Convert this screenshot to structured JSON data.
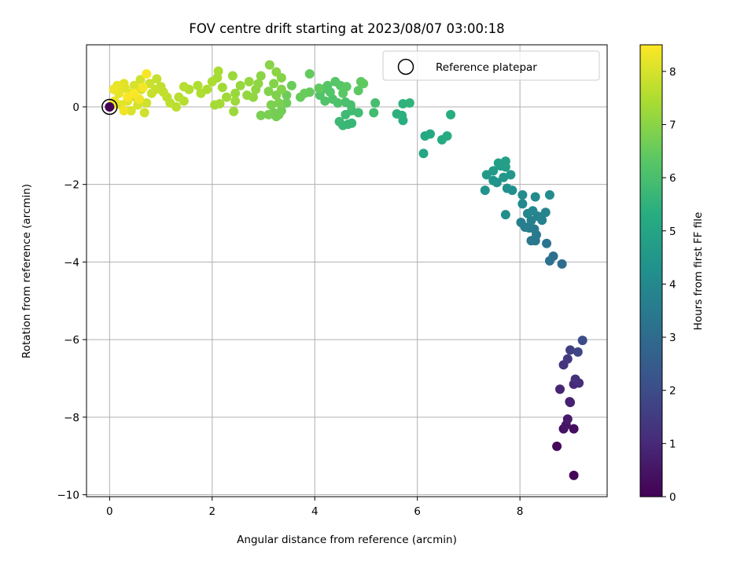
{
  "chart_data": {
    "type": "scatter",
    "title": "FOV centre drift starting at 2023/08/07 03:00:18",
    "xlabel": "Angular distance from reference (arcmin)",
    "ylabel": "Rotation from reference (arcmin)",
    "xlim": [
      -0.45,
      9.7
    ],
    "ylim": [
      -10.05,
      1.6
    ],
    "x_ticks": [
      0,
      2,
      4,
      6,
      8
    ],
    "y_ticks": [
      0,
      -2,
      -4,
      -6,
      -8,
      -10
    ],
    "x_tick_labels": [
      "0",
      "2",
      "4",
      "6",
      "8"
    ],
    "y_tick_labels": [
      "0",
      "−2",
      "−4",
      "−6",
      "−8",
      "−10"
    ],
    "grid": true,
    "legend": {
      "placement": "top-right",
      "entries": [
        {
          "label": "Reference platepar",
          "marker": "open-circle"
        }
      ]
    },
    "reference_point": {
      "x": 0,
      "y": 0
    },
    "colorbar": {
      "label": "Hours from first FF file",
      "colormap": "viridis",
      "range": [
        0,
        8.5
      ],
      "ticks": [
        0,
        1,
        2,
        3,
        4,
        5,
        6,
        7,
        8
      ],
      "tick_labels": [
        "0",
        "1",
        "2",
        "3",
        "4",
        "5",
        "6",
        "7",
        "8"
      ]
    },
    "points": [
      {
        "x": 9.05,
        "y": -9.5,
        "t": 0.1
      },
      {
        "x": 8.72,
        "y": -8.75,
        "t": 0.2
      },
      {
        "x": 9.05,
        "y": -8.3,
        "t": 0.3
      },
      {
        "x": 8.85,
        "y": -8.3,
        "t": 0.4
      },
      {
        "x": 8.9,
        "y": -8.2,
        "t": 0.5
      },
      {
        "x": 8.93,
        "y": -8.05,
        "t": 0.6
      },
      {
        "x": 8.97,
        "y": -7.6,
        "t": 0.75
      },
      {
        "x": 8.98,
        "y": -7.62,
        "t": 0.8
      },
      {
        "x": 8.78,
        "y": -7.28,
        "t": 0.9
      },
      {
        "x": 9.05,
        "y": -7.15,
        "t": 1.0
      },
      {
        "x": 9.15,
        "y": -7.12,
        "t": 1.1
      },
      {
        "x": 9.08,
        "y": -7.02,
        "t": 1.2
      },
      {
        "x": 8.85,
        "y": -6.65,
        "t": 1.3
      },
      {
        "x": 8.93,
        "y": -6.5,
        "t": 1.45
      },
      {
        "x": 8.98,
        "y": -6.27,
        "t": 1.6
      },
      {
        "x": 9.13,
        "y": -6.32,
        "t": 1.8
      },
      {
        "x": 9.22,
        "y": -6.02,
        "t": 2.0
      },
      {
        "x": 8.82,
        "y": -4.05,
        "t": 3.1
      },
      {
        "x": 8.65,
        "y": -3.85,
        "t": 3.15
      },
      {
        "x": 8.58,
        "y": -3.97,
        "t": 3.2
      },
      {
        "x": 8.52,
        "y": -3.52,
        "t": 3.3
      },
      {
        "x": 8.3,
        "y": -3.45,
        "t": 3.35
      },
      {
        "x": 8.22,
        "y": -3.45,
        "t": 3.4
      },
      {
        "x": 8.32,
        "y": -3.3,
        "t": 3.45
      },
      {
        "x": 8.28,
        "y": -3.15,
        "t": 3.5
      },
      {
        "x": 8.18,
        "y": -3.12,
        "t": 3.55
      },
      {
        "x": 8.1,
        "y": -3.1,
        "t": 3.6
      },
      {
        "x": 8.02,
        "y": -2.98,
        "t": 3.65
      },
      {
        "x": 8.22,
        "y": -2.93,
        "t": 3.7
      },
      {
        "x": 8.43,
        "y": -2.92,
        "t": 3.75
      },
      {
        "x": 8.35,
        "y": -2.82,
        "t": 3.8
      },
      {
        "x": 8.5,
        "y": -2.72,
        "t": 3.85
      },
      {
        "x": 8.15,
        "y": -2.75,
        "t": 3.9
      },
      {
        "x": 8.25,
        "y": -2.68,
        "t": 3.95
      },
      {
        "x": 8.05,
        "y": -2.5,
        "t": 4.0
      },
      {
        "x": 8.3,
        "y": -2.32,
        "t": 4.05
      },
      {
        "x": 8.58,
        "y": -2.27,
        "t": 4.1
      },
      {
        "x": 8.05,
        "y": -2.27,
        "t": 4.15
      },
      {
        "x": 7.72,
        "y": -2.78,
        "t": 4.2
      },
      {
        "x": 7.85,
        "y": -2.15,
        "t": 4.25
      },
      {
        "x": 7.75,
        "y": -2.1,
        "t": 4.3
      },
      {
        "x": 7.32,
        "y": -2.15,
        "t": 4.35
      },
      {
        "x": 7.55,
        "y": -1.95,
        "t": 4.4
      },
      {
        "x": 7.48,
        "y": -1.9,
        "t": 4.45
      },
      {
        "x": 7.68,
        "y": -1.82,
        "t": 4.5
      },
      {
        "x": 7.82,
        "y": -1.75,
        "t": 4.55
      },
      {
        "x": 7.35,
        "y": -1.75,
        "t": 4.6
      },
      {
        "x": 7.48,
        "y": -1.65,
        "t": 4.65
      },
      {
        "x": 7.62,
        "y": -1.52,
        "t": 4.7
      },
      {
        "x": 7.72,
        "y": -1.55,
        "t": 4.75
      },
      {
        "x": 7.58,
        "y": -1.45,
        "t": 4.8
      },
      {
        "x": 7.72,
        "y": -1.4,
        "t": 4.85
      },
      {
        "x": 6.12,
        "y": -1.2,
        "t": 5.05
      },
      {
        "x": 6.15,
        "y": -0.75,
        "t": 5.1
      },
      {
        "x": 6.25,
        "y": -0.7,
        "t": 5.15
      },
      {
        "x": 6.48,
        "y": -0.85,
        "t": 5.2
      },
      {
        "x": 6.58,
        "y": -0.75,
        "t": 5.25
      },
      {
        "x": 6.65,
        "y": -0.2,
        "t": 5.3
      },
      {
        "x": 5.72,
        "y": -0.35,
        "t": 5.35
      },
      {
        "x": 5.7,
        "y": -0.22,
        "t": 5.4
      },
      {
        "x": 5.6,
        "y": -0.18,
        "t": 5.45
      },
      {
        "x": 5.72,
        "y": 0.08,
        "t": 5.5
      },
      {
        "x": 5.85,
        "y": 0.1,
        "t": 5.55
      },
      {
        "x": 4.72,
        "y": -0.42,
        "t": 5.65
      },
      {
        "x": 4.65,
        "y": -0.45,
        "t": 5.7
      },
      {
        "x": 4.55,
        "y": -0.48,
        "t": 5.72
      },
      {
        "x": 4.48,
        "y": -0.38,
        "t": 5.75
      },
      {
        "x": 4.6,
        "y": -0.2,
        "t": 5.8
      },
      {
        "x": 4.72,
        "y": -0.1,
        "t": 5.85
      },
      {
        "x": 4.85,
        "y": -0.15,
        "t": 5.88
      },
      {
        "x": 5.15,
        "y": -0.15,
        "t": 5.9
      },
      {
        "x": 5.18,
        "y": 0.1,
        "t": 5.95
      },
      {
        "x": 4.7,
        "y": 0.05,
        "t": 6.0
      },
      {
        "x": 4.6,
        "y": 0.12,
        "t": 6.05
      },
      {
        "x": 4.45,
        "y": 0.1,
        "t": 6.1
      },
      {
        "x": 4.35,
        "y": 0.2,
        "t": 6.12
      },
      {
        "x": 4.2,
        "y": 0.15,
        "t": 6.15
      },
      {
        "x": 4.1,
        "y": 0.3,
        "t": 6.18
      },
      {
        "x": 4.3,
        "y": 0.38,
        "t": 6.2
      },
      {
        "x": 4.15,
        "y": 0.45,
        "t": 6.22
      },
      {
        "x": 4.25,
        "y": 0.55,
        "t": 6.25
      },
      {
        "x": 4.4,
        "y": 0.65,
        "t": 6.28
      },
      {
        "x": 4.5,
        "y": 0.55,
        "t": 6.3
      },
      {
        "x": 4.62,
        "y": 0.52,
        "t": 6.32
      },
      {
        "x": 4.55,
        "y": 0.35,
        "t": 6.35
      },
      {
        "x": 4.85,
        "y": 0.42,
        "t": 6.38
      },
      {
        "x": 4.9,
        "y": 0.65,
        "t": 6.4
      },
      {
        "x": 4.95,
        "y": 0.6,
        "t": 6.42
      },
      {
        "x": 4.08,
        "y": 0.48,
        "t": 6.45
      },
      {
        "x": 3.9,
        "y": 0.38,
        "t": 6.48
      },
      {
        "x": 3.9,
        "y": 0.85,
        "t": 6.5
      },
      {
        "x": 3.72,
        "y": 0.25,
        "t": 6.52
      },
      {
        "x": 3.8,
        "y": 0.35,
        "t": 6.55
      },
      {
        "x": 3.55,
        "y": 0.55,
        "t": 6.58
      },
      {
        "x": 3.45,
        "y": 0.3,
        "t": 6.6
      },
      {
        "x": 3.45,
        "y": 0.1,
        "t": 6.62
      },
      {
        "x": 3.35,
        "y": -0.1,
        "t": 6.65
      },
      {
        "x": 3.3,
        "y": -0.2,
        "t": 6.68
      },
      {
        "x": 3.25,
        "y": -0.25,
        "t": 6.7
      },
      {
        "x": 3.2,
        "y": -0.15,
        "t": 6.72
      },
      {
        "x": 3.1,
        "y": -0.2,
        "t": 6.75
      },
      {
        "x": 2.95,
        "y": -0.22,
        "t": 6.78
      },
      {
        "x": 3.15,
        "y": 0.05,
        "t": 6.8
      },
      {
        "x": 3.3,
        "y": 0.1,
        "t": 6.82
      },
      {
        "x": 3.25,
        "y": 0.3,
        "t": 6.85
      },
      {
        "x": 3.1,
        "y": 0.4,
        "t": 6.88
      },
      {
        "x": 3.35,
        "y": 0.45,
        "t": 6.9
      },
      {
        "x": 3.2,
        "y": 0.6,
        "t": 6.92
      },
      {
        "x": 3.35,
        "y": 0.75,
        "t": 6.95
      },
      {
        "x": 3.12,
        "y": 1.08,
        "t": 6.97
      },
      {
        "x": 3.25,
        "y": 0.9,
        "t": 7.0
      },
      {
        "x": 2.95,
        "y": 0.8,
        "t": 7.02
      },
      {
        "x": 2.9,
        "y": 0.6,
        "t": 7.05
      },
      {
        "x": 2.85,
        "y": 0.45,
        "t": 7.08
      },
      {
        "x": 2.8,
        "y": 0.25,
        "t": 7.1
      },
      {
        "x": 2.68,
        "y": 0.3,
        "t": 7.12
      },
      {
        "x": 2.72,
        "y": 0.65,
        "t": 7.15
      },
      {
        "x": 2.55,
        "y": 0.55,
        "t": 7.18
      },
      {
        "x": 2.45,
        "y": 0.35,
        "t": 7.2
      },
      {
        "x": 2.4,
        "y": 0.8,
        "t": 7.22
      },
      {
        "x": 2.42,
        "y": -0.12,
        "t": 7.25
      },
      {
        "x": 2.45,
        "y": 0.15,
        "t": 7.28
      },
      {
        "x": 2.28,
        "y": 0.25,
        "t": 7.3
      },
      {
        "x": 2.2,
        "y": 0.5,
        "t": 7.32
      },
      {
        "x": 2.15,
        "y": 0.08,
        "t": 7.35
      },
      {
        "x": 2.05,
        "y": 0.05,
        "t": 7.38
      },
      {
        "x": 2.1,
        "y": 0.75,
        "t": 7.4
      },
      {
        "x": 2.12,
        "y": 0.92,
        "t": 7.42
      },
      {
        "x": 2.0,
        "y": 0.65,
        "t": 7.45
      },
      {
        "x": 1.9,
        "y": 0.45,
        "t": 7.48
      },
      {
        "x": 1.78,
        "y": 0.35,
        "t": 7.5
      },
      {
        "x": 1.72,
        "y": 0.55,
        "t": 7.52
      },
      {
        "x": 1.55,
        "y": 0.45,
        "t": 7.55
      },
      {
        "x": 1.45,
        "y": 0.15,
        "t": 7.58
      },
      {
        "x": 1.45,
        "y": 0.52,
        "t": 7.6
      },
      {
        "x": 1.35,
        "y": 0.25,
        "t": 7.62
      },
      {
        "x": 1.3,
        "y": 0.0,
        "t": 7.65
      },
      {
        "x": 1.18,
        "y": 0.1,
        "t": 7.68
      },
      {
        "x": 1.12,
        "y": 0.25,
        "t": 7.7
      },
      {
        "x": 1.0,
        "y": 0.52,
        "t": 7.72
      },
      {
        "x": 1.05,
        "y": 0.38,
        "t": 7.75
      },
      {
        "x": 0.92,
        "y": 0.72,
        "t": 7.78
      },
      {
        "x": 0.9,
        "y": 0.45,
        "t": 7.8
      },
      {
        "x": 0.82,
        "y": 0.35,
        "t": 7.82
      },
      {
        "x": 0.78,
        "y": 0.6,
        "t": 7.85
      },
      {
        "x": 0.72,
        "y": 0.1,
        "t": 7.88
      },
      {
        "x": 0.68,
        "y": -0.15,
        "t": 7.9
      },
      {
        "x": 0.62,
        "y": 0.45,
        "t": 7.92
      },
      {
        "x": 0.6,
        "y": 0.7,
        "t": 7.95
      },
      {
        "x": 0.55,
        "y": 0.05,
        "t": 7.98
      },
      {
        "x": 0.5,
        "y": 0.25,
        "t": 8.0
      },
      {
        "x": 0.48,
        "y": 0.55,
        "t": 8.02
      },
      {
        "x": 0.42,
        "y": -0.1,
        "t": 8.05
      },
      {
        "x": 0.42,
        "y": 0.35,
        "t": 8.08
      },
      {
        "x": 0.35,
        "y": 0.15,
        "t": 8.1
      },
      {
        "x": 0.3,
        "y": 0.48,
        "t": 8.12
      },
      {
        "x": 0.28,
        "y": 0.6,
        "t": 8.15
      },
      {
        "x": 0.22,
        "y": 0.05,
        "t": 8.18
      },
      {
        "x": 0.18,
        "y": 0.35,
        "t": 8.2
      },
      {
        "x": 0.15,
        "y": 0.55,
        "t": 8.22
      },
      {
        "x": 0.1,
        "y": 0.15,
        "t": 8.25
      },
      {
        "x": 0.08,
        "y": 0.45,
        "t": 8.28
      },
      {
        "x": 0.05,
        "y": 0.05,
        "t": 8.3
      },
      {
        "x": 0.28,
        "y": -0.1,
        "t": 8.32
      },
      {
        "x": 0.58,
        "y": 0.2,
        "t": 8.35
      },
      {
        "x": 0.65,
        "y": 0.5,
        "t": 8.38
      },
      {
        "x": 0.72,
        "y": 0.85,
        "t": 8.42
      },
      {
        "x": 0.35,
        "y": 0.25,
        "t": 8.45
      },
      {
        "x": 0.48,
        "y": 0.35,
        "t": 8.48
      }
    ]
  }
}
